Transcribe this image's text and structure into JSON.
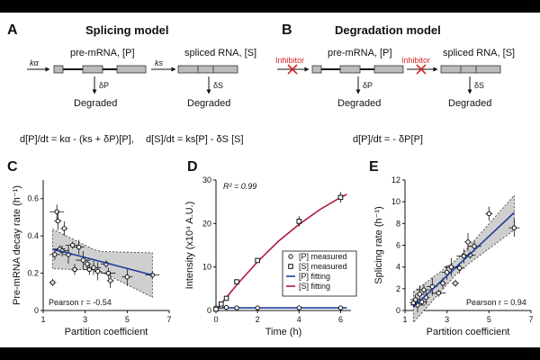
{
  "panels": {
    "A": {
      "letter": "A",
      "title": "Splicing model",
      "pre_mrna_label": "pre-mRNA, [P]",
      "spliced_label": "spliced RNA, [S]",
      "k_alpha": "kα",
      "k_s": "ks",
      "delta_p": "δP",
      "delta_s": "δS",
      "degraded_1": "Degraded",
      "degraded_2": "Degraded",
      "eq1": "d[P]/dt = kα - (ks + δP)[P],",
      "eq2": "d[S]/dt = ks[P] - δS [S]"
    },
    "B": {
      "letter": "B",
      "title": "Degradation model",
      "pre_mrna_label": "pre-mRNA, [P]",
      "spliced_label": "spliced RNA, [S]",
      "inhibitor_1": "Inhibitor",
      "inhibitor_2": "Inhibitor",
      "delta_p": "δP",
      "delta_s": "δS",
      "degraded_1": "Degraded",
      "degraded_2": "Degraded",
      "eq": "d[P]/dt = - δP[P]"
    },
    "C": {
      "letter": "C"
    },
    "D": {
      "letter": "D"
    },
    "E": {
      "letter": "E"
    }
  },
  "chart_data": [
    {
      "id": "C",
      "type": "scatter",
      "xlabel": "Partition coefficient",
      "ylabel": "Pre-mRNA decay rate (h⁻¹)",
      "xlim": [
        1,
        7
      ],
      "ylim": [
        0,
        0.7
      ],
      "xticks": [
        "1",
        "3",
        "5",
        "7"
      ],
      "yticks": [
        "0",
        "0.2",
        "0.4",
        "0.6"
      ],
      "annotation": "Pearson r = -0.54",
      "points": [
        {
          "x": 1.45,
          "y": 0.15
        },
        {
          "x": 1.55,
          "y": 0.3
        },
        {
          "x": 1.65,
          "y": 0.53
        },
        {
          "x": 1.7,
          "y": 0.48
        },
        {
          "x": 1.8,
          "y": 0.33
        },
        {
          "x": 1.9,
          "y": 0.32
        },
        {
          "x": 2.0,
          "y": 0.44
        },
        {
          "x": 2.2,
          "y": 0.3
        },
        {
          "x": 2.4,
          "y": 0.35
        },
        {
          "x": 2.5,
          "y": 0.22
        },
        {
          "x": 2.7,
          "y": 0.34
        },
        {
          "x": 2.9,
          "y": 0.27
        },
        {
          "x": 3.1,
          "y": 0.25
        },
        {
          "x": 3.2,
          "y": 0.22
        },
        {
          "x": 3.4,
          "y": 0.23
        },
        {
          "x": 3.6,
          "y": 0.21
        },
        {
          "x": 4.0,
          "y": 0.25
        },
        {
          "x": 4.1,
          "y": 0.2
        },
        {
          "x": 4.2,
          "y": 0.16
        },
        {
          "x": 5.0,
          "y": 0.18
        },
        {
          "x": 6.2,
          "y": 0.19
        }
      ],
      "fit_line": {
        "x": [
          1.45,
          6.2
        ],
        "y": [
          0.33,
          0.19
        ]
      }
    },
    {
      "id": "D",
      "type": "line",
      "xlabel": "Time (h)",
      "ylabel": "Intensity (x10⁴ A.U.)",
      "xlim": [
        0,
        6.5
      ],
      "ylim": [
        0,
        30
      ],
      "xticks": [
        "0",
        "2",
        "4",
        "6"
      ],
      "yticks": [
        "0",
        "10",
        "20",
        "30"
      ],
      "annotation": "R² = 0.99",
      "series": [
        {
          "name": "[P] measured",
          "x": [
            0,
            0.25,
            0.5,
            1,
            2,
            4,
            6
          ],
          "y": [
            0.6,
            1.0,
            0.7,
            0.6,
            0.6,
            0.6,
            0.6
          ]
        },
        {
          "name": "[S] measured",
          "x": [
            0,
            0.25,
            0.5,
            1,
            2,
            4,
            6
          ],
          "y": [
            0.3,
            1.5,
            2.8,
            6.6,
            11.5,
            20.5,
            26.0
          ]
        },
        {
          "name": "[P] fitting",
          "x": [
            0,
            6.3
          ],
          "y": [
            0.6,
            0.6
          ]
        },
        {
          "name": "[S] fitting",
          "x": [
            0,
            0.5,
            1,
            2,
            3,
            4,
            5,
            6,
            6.3
          ],
          "y": [
            0,
            3.0,
            5.9,
            11.2,
            15.9,
            19.8,
            23.2,
            26.0,
            26.7
          ]
        }
      ],
      "legend": [
        "[P] measured",
        "[S] measured",
        "[P] fitting",
        "[S] fitting"
      ]
    },
    {
      "id": "E",
      "type": "scatter",
      "xlabel": "Partition coefficient",
      "ylabel": "Splicing rate (h⁻¹)",
      "xlim": [
        1,
        7
      ],
      "ylim": [
        0,
        12
      ],
      "xticks": [
        "1",
        "3",
        "5",
        "7"
      ],
      "yticks": [
        "0",
        "2",
        "4",
        "6",
        "8",
        "10",
        "12"
      ],
      "annotation": "Pearson r = 0.94",
      "points": [
        {
          "x": 1.4,
          "y": 0.7
        },
        {
          "x": 1.5,
          "y": 1.0
        },
        {
          "x": 1.6,
          "y": 0.5
        },
        {
          "x": 1.7,
          "y": 1.5
        },
        {
          "x": 1.8,
          "y": 0.8
        },
        {
          "x": 1.9,
          "y": 1.9
        },
        {
          "x": 2.0,
          "y": 1.2
        },
        {
          "x": 2.3,
          "y": 2.2
        },
        {
          "x": 2.6,
          "y": 1.6
        },
        {
          "x": 2.8,
          "y": 2.5
        },
        {
          "x": 3.0,
          "y": 3.5
        },
        {
          "x": 3.2,
          "y": 4.0
        },
        {
          "x": 3.4,
          "y": 2.5
        },
        {
          "x": 3.6,
          "y": 3.9
        },
        {
          "x": 3.8,
          "y": 5.0
        },
        {
          "x": 4.0,
          "y": 6.3
        },
        {
          "x": 4.1,
          "y": 5.1
        },
        {
          "x": 4.3,
          "y": 5.9
        },
        {
          "x": 5.0,
          "y": 8.9
        },
        {
          "x": 6.2,
          "y": 7.6
        }
      ],
      "fit_line": {
        "x": [
          1.4,
          6.2
        ],
        "y": [
          0.3,
          9.0
        ]
      }
    }
  ]
}
